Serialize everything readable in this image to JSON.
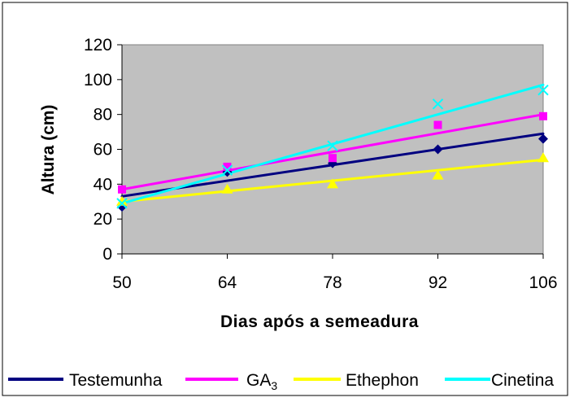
{
  "chart_data": {
    "type": "line",
    "title": "",
    "xlabel": "Dias após a semeadura",
    "ylabel": "Altura (cm)",
    "x": [
      50,
      64,
      78,
      92,
      106
    ],
    "ylim": [
      0,
      120
    ],
    "yticks": [
      0,
      20,
      40,
      60,
      80,
      100,
      120
    ],
    "grid": false,
    "plot_background": "#c0c0c0",
    "legend_position": "bottom",
    "series": [
      {
        "name": "Testemunha",
        "color": "#000080",
        "marker": "diamond",
        "values": [
          27,
          47,
          52,
          60,
          66
        ],
        "trend": [
          33,
          42,
          51,
          60,
          69
        ]
      },
      {
        "name": "GA3",
        "legend_base": "GA",
        "legend_sub": "3",
        "color": "#ff00ff",
        "marker": "square",
        "values": [
          37,
          50,
          55,
          74,
          79
        ],
        "trend": [
          37,
          47.5,
          58,
          69,
          80
        ]
      },
      {
        "name": "Ethephon",
        "color": "#ffff00",
        "marker": "triangle",
        "values": [
          30,
          37,
          40,
          45,
          55
        ],
        "trend": [
          30,
          36,
          42,
          48,
          54
        ]
      },
      {
        "name": "Cinetina",
        "color": "#00ffff",
        "marker": "x",
        "values": [
          29,
          48,
          62,
          86,
          94
        ],
        "trend": [
          29,
          46,
          63,
          80,
          97
        ]
      }
    ]
  }
}
